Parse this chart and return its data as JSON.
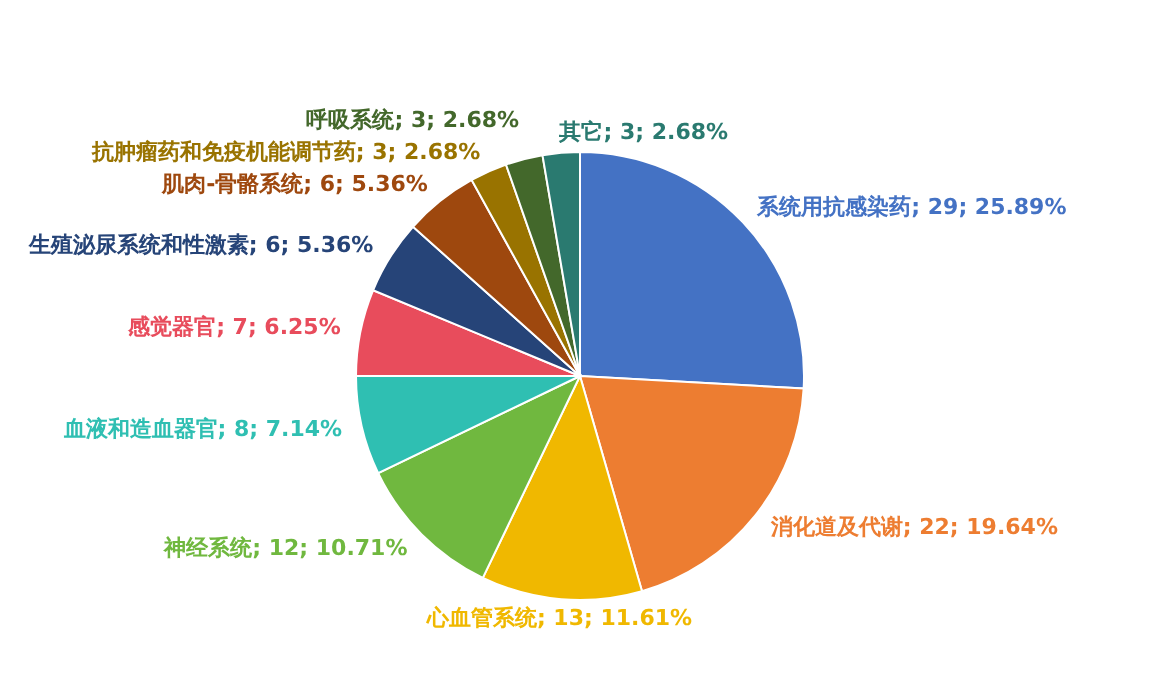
{
  "chart_data": {
    "type": "pie",
    "categories": [
      "系统用抗感染药",
      "消化道及代谢",
      "心血管系统",
      "神经系统",
      "血液和造血器官",
      "感觉器官",
      "生殖泌尿系统和性激素",
      "肌肉-骨骼系统",
      "抗肿瘤药和免疫机能调节药",
      "呼吸系统",
      "其它"
    ],
    "values": [
      29,
      22,
      13,
      12,
      8,
      7,
      6,
      6,
      3,
      3,
      3
    ],
    "value_labels": [
      "29; 25.89%",
      "22; 19.64%",
      "13; 11.61%",
      "12; 10.71%",
      "8; 7.14%",
      "7; 6.25%",
      "6; 5.36%",
      "6; 5.36%",
      "3; 2.68%",
      "3; 2.68%",
      "3; 2.68%"
    ],
    "colors": [
      "#4472c4",
      "#ed7d31",
      "#f0b800",
      "#70b83f",
      "#2fbfb2",
      "#e84c5c",
      "#264478",
      "#9e480e",
      "#997300",
      "#43682b",
      "#2a7a70"
    ]
  }
}
